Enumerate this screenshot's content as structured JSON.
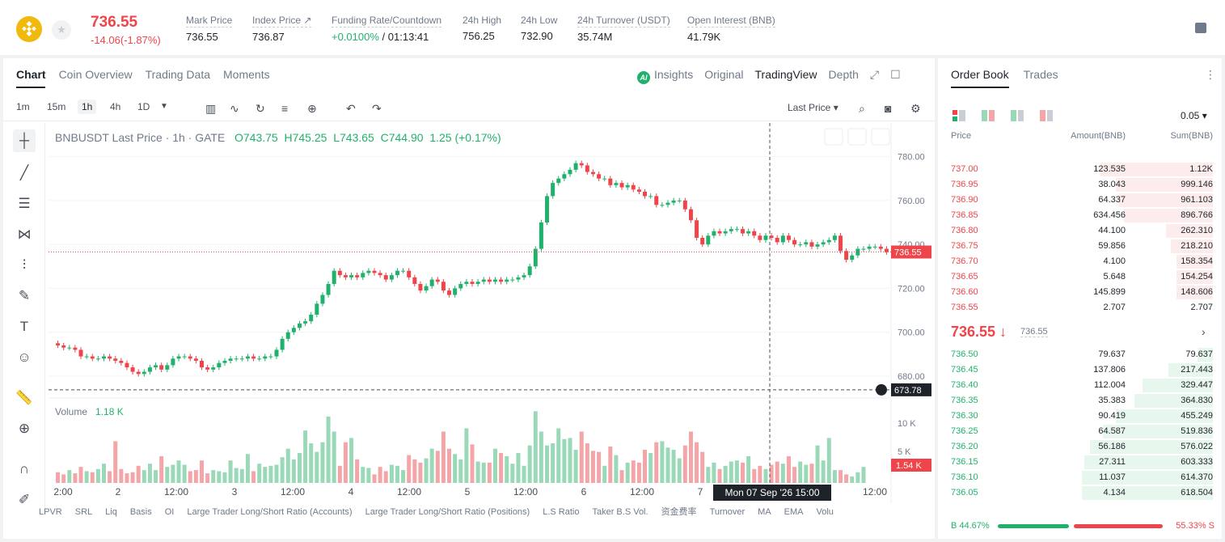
{
  "header": {
    "last_price": "736.55",
    "change": "-14.06(-1.87%)",
    "stats": [
      {
        "label": "Mark Price",
        "value": "736.55"
      },
      {
        "label": "Index Price ↗",
        "value": "736.87"
      },
      {
        "label": "Funding Rate/Countdown",
        "value": "+0.0100%",
        "value2": "/ 01:13:41"
      },
      {
        "label": "24h High",
        "value": "756.25"
      },
      {
        "label": "24h Low",
        "value": "732.90"
      },
      {
        "label": "24h Turnover (USDT)",
        "value": "35.74M"
      },
      {
        "label": "Open Interest (BNB)",
        "value": "41.79K"
      }
    ]
  },
  "chart_tabs": [
    "Chart",
    "Coin Overview",
    "Trading Data",
    "Moments"
  ],
  "view_tabs": [
    "Insights",
    "Original",
    "TradingView",
    "Depth"
  ],
  "ai_badge": "AI",
  "timeframes": [
    "1m",
    "15m",
    "1h",
    "4h",
    "1D"
  ],
  "last_price_select": "Last Price",
  "legend": {
    "symbol": "BNBUSDT Last Price · 1h · GATE",
    "o": "O743.75",
    "h": "H745.25",
    "l": "L743.65",
    "c": "C744.90",
    "chg": "1.25 (+0.17%)"
  },
  "volume_label": "Volume",
  "volume_value": "1.18 K",
  "chart_data": {
    "type": "candlestick",
    "y_ticks": [
      780,
      760,
      740,
      720,
      700,
      680
    ],
    "ylim": [
      673,
      785
    ],
    "y_tick_labels": [
      "780.00",
      "760.00",
      "740.00",
      "720.00",
      "700.00",
      "680.00"
    ],
    "price_line": 736.55,
    "price_label": "736.55",
    "cursor_price": 673.78,
    "cursor_label": "673.78",
    "cursor_time": "Mon 07 Sep '26   15:00",
    "x_labels": [
      "2:00",
      "2",
      "12:00",
      "3",
      "12:00",
      "4",
      "12:00",
      "5",
      "12:00",
      "6",
      "12:00",
      "7",
      "12:00"
    ],
    "vol_ticks": [
      "10 K",
      "5 K"
    ],
    "vol_current": "1.54 K",
    "closes": [
      694,
      693,
      693,
      692,
      689,
      689,
      688,
      688,
      689,
      688,
      687,
      686,
      684,
      682,
      681,
      682,
      684,
      685,
      683,
      685,
      688,
      689,
      689,
      688,
      687,
      684,
      683,
      684,
      686,
      687,
      688,
      688,
      688,
      689,
      688,
      688,
      689,
      689,
      692,
      697,
      700,
      702,
      704,
      705,
      708,
      713,
      717,
      722,
      728,
      726,
      725,
      726,
      725,
      727,
      728,
      727,
      726,
      724,
      726,
      728,
      728,
      725,
      722,
      719,
      721,
      724,
      723,
      719,
      717,
      720,
      722,
      723,
      722,
      723,
      724,
      723,
      724,
      723,
      724,
      724,
      725,
      726,
      730,
      738,
      750,
      762,
      768,
      770,
      772,
      774,
      777,
      776,
      773,
      772,
      770,
      770,
      767,
      768,
      766,
      767,
      765,
      764,
      762,
      762,
      758,
      758,
      759,
      760,
      760,
      756,
      751,
      743,
      740,
      744,
      746,
      745,
      746,
      747,
      747,
      745,
      746,
      744,
      742,
      744,
      743,
      741,
      744,
      742,
      740,
      740,
      741,
      739,
      740,
      741,
      742,
      744,
      737,
      733,
      735,
      738,
      738,
      739,
      739,
      738,
      736.5
    ],
    "volumes": [
      1,
      0.8,
      1.2,
      0.9,
      1.5,
      1.1,
      1,
      1.3,
      1.8,
      1.1,
      3.9,
      1.3,
      0.9,
      1,
      1.6,
      1.2,
      1.8,
      1.2,
      2.5,
      1.5,
      1.7,
      2.1,
      1.7,
      1.1,
      1.2,
      2.1,
      0.9,
      1.2,
      1.1,
      1,
      2.1,
      1.4,
      1.3,
      2.7,
      1.1,
      1.8,
      1.5,
      1.6,
      1.7,
      2.4,
      3.2,
      2.2,
      2.8,
      4.9,
      3.7,
      2.9,
      3.8,
      6.2,
      4.8,
      1.6,
      3.8,
      4.2,
      2.2,
      1.5,
      1.4,
      0.8,
      1.5,
      1.1,
      1.7,
      1.6,
      1.2,
      2.6,
      2.2,
      1.9,
      2.3,
      3.2,
      3,
      4.8,
      3.2,
      2.7,
      2.2,
      5.1,
      3.6,
      2,
      1.9,
      1.9,
      3.2,
      2.8,
      2.5,
      1.8,
      2.8,
      1.6,
      3.5,
      6.7,
      4.8,
      3.5,
      3.7,
      5.1,
      4.1,
      4.2,
      3.1,
      4.8,
      3.7,
      3,
      2.9,
      1.6,
      3.4,
      2.6,
      1.2,
      1.9,
      2.1,
      1.9,
      3.1,
      2.8,
      3.8,
      3.9,
      3.3,
      3.1,
      2.3,
      3.5,
      4.8,
      3.8,
      2.9,
      1.5,
      1.9,
      1.3,
      1.6,
      2,
      2.1,
      1.9,
      2.5,
      1.3,
      1.6,
      1.3,
      1.7,
      2,
      1.8,
      2.5,
      1.5,
      2,
      1.7,
      1.8,
      3.5,
      2.1,
      4.2,
      1.2,
      1.2,
      0.8,
      0.6,
      1,
      1.5
    ]
  },
  "indicators": [
    "LPVR",
    "SRL",
    "Liq",
    "Basis",
    "OI",
    "Large Trader Long/Short Ratio (Accounts)",
    "Large Trader Long/Short Ratio (Positions)",
    "L.S Ratio",
    "Taker B.S Vol.",
    "资金费率",
    "Turnover",
    "MA",
    "EMA",
    "Volu"
  ],
  "orderbook": {
    "tabs": [
      "Order Book",
      "Trades"
    ],
    "step": "0.05 ▾",
    "head": {
      "price": "Price",
      "amount": "Amount(BNB)",
      "sum": "Sum(BNB)"
    },
    "asks": [
      {
        "p": "737.00",
        "a": "123.535",
        "s": "1.12K",
        "depth": 0.43
      },
      {
        "p": "736.95",
        "a": "38.043",
        "s": "999.146",
        "depth": 0.37
      },
      {
        "p": "736.90",
        "a": "64.337",
        "s": "961.103",
        "depth": 0.36
      },
      {
        "p": "736.85",
        "a": "634.456",
        "s": "896.766",
        "depth": 0.34
      },
      {
        "p": "736.80",
        "a": "44.100",
        "s": "262.310",
        "depth": 0.18
      },
      {
        "p": "736.75",
        "a": "59.856",
        "s": "218.210",
        "depth": 0.16
      },
      {
        "p": "736.70",
        "a": "4.100",
        "s": "158.354",
        "depth": 0.14
      },
      {
        "p": "736.65",
        "a": "5.648",
        "s": "154.254",
        "depth": 0.14
      },
      {
        "p": "736.60",
        "a": "145.899",
        "s": "148.606",
        "depth": 0.14
      },
      {
        "p": "736.55",
        "a": "2.707",
        "s": "2.707",
        "depth": 0
      }
    ],
    "mid_price": "736.55 ↓",
    "mid_mark": "736.55",
    "bids": [
      {
        "p": "736.50",
        "a": "79.637",
        "s": "79.637",
        "depth": 0.06
      },
      {
        "p": "736.45",
        "a": "137.806",
        "s": "217.443",
        "depth": 0.17
      },
      {
        "p": "736.40",
        "a": "112.004",
        "s": "329.447",
        "depth": 0.27
      },
      {
        "p": "736.35",
        "a": "35.383",
        "s": "364.830",
        "depth": 0.3
      },
      {
        "p": "736.30",
        "a": "90.419",
        "s": "455.249",
        "depth": 0.37
      },
      {
        "p": "736.25",
        "a": "64.587",
        "s": "519.836",
        "depth": 0.42
      },
      {
        "p": "736.20",
        "a": "56.186",
        "s": "576.022",
        "depth": 0.47
      },
      {
        "p": "736.15",
        "a": "27.311",
        "s": "603.333",
        "depth": 0.49
      },
      {
        "p": "736.10",
        "a": "11.037",
        "s": "614.370",
        "depth": 0.5
      },
      {
        "p": "736.05",
        "a": "4.134",
        "s": "618.504",
        "depth": 0.5
      }
    ],
    "buy_ratio": "B 44.67%",
    "sell_ratio": "55.33% S",
    "buy_fraction": 0.4467
  }
}
